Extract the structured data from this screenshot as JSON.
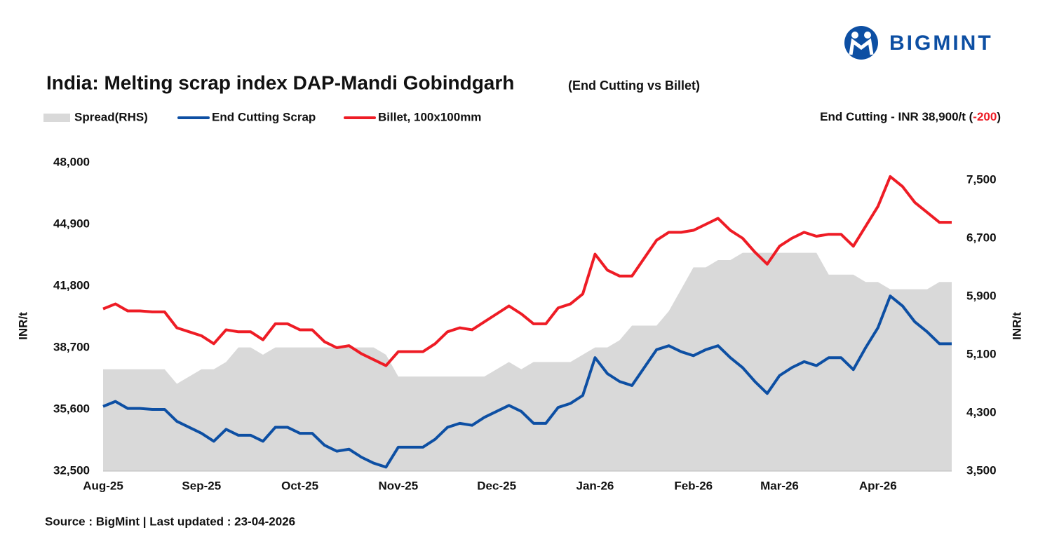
{
  "logo": "BIGMINT",
  "chart_data": {
    "type": "line",
    "title": "India: Melting scrap index DAP-Mandi Gobindgarh",
    "subtitle": "(End Cutting vs Billet)",
    "annotation": {
      "text": "End Cutting - INR 38,900/t (",
      "change": "-200",
      "close": ")"
    },
    "source": "Source : BigMint | Last updated : 23-04-2026",
    "ylabel": "INR/t",
    "y2label": "INR/t",
    "categories": [
      "Aug-25",
      null,
      null,
      null,
      null,
      null,
      null,
      null,
      "Sep-25",
      null,
      null,
      null,
      null,
      null,
      null,
      null,
      "Oct-25",
      null,
      null,
      null,
      null,
      null,
      null,
      null,
      "Nov-25",
      null,
      null,
      null,
      null,
      null,
      null,
      null,
      "Dec-25",
      null,
      null,
      null,
      null,
      null,
      null,
      null,
      "Jan-26",
      null,
      null,
      null,
      null,
      null,
      null,
      null,
      "Feb-26",
      null,
      null,
      null,
      null,
      null,
      null,
      "Mar-26",
      null,
      null,
      null,
      null,
      null,
      null,
      null,
      "Apr-26",
      null,
      null,
      null,
      null,
      null,
      null
    ],
    "series": [
      {
        "name": "Spread(RHS)",
        "type": "area",
        "axis": "y2",
        "color": "#d9d9d9",
        "values": [
          4900,
          4900,
          4900,
          4900,
          4900,
          4900,
          4700,
          4800,
          4900,
          4900,
          5000,
          5200,
          5200,
          5100,
          5200,
          5200,
          5200,
          5200,
          5200,
          5200,
          5200,
          5200,
          5200,
          5100,
          4800,
          4800,
          4800,
          4800,
          4800,
          4800,
          4800,
          4800,
          4900,
          5000,
          4900,
          5000,
          5000,
          5000,
          5000,
          5100,
          5200,
          5200,
          5300,
          5500,
          5500,
          5500,
          5700,
          6000,
          6300,
          6300,
          6400,
          6400,
          6500,
          6500,
          6500,
          6500,
          6500,
          6500,
          6500,
          6200,
          6200,
          6200,
          6100,
          6100,
          6000,
          6000,
          6000,
          6000,
          6100,
          6100
        ]
      },
      {
        "name": "End Cutting Scrap",
        "type": "line",
        "color": "#0d4fa3",
        "values": [
          35750,
          36000,
          35650,
          35650,
          35600,
          35600,
          35000,
          34700,
          34400,
          34000,
          34600,
          34300,
          34300,
          34000,
          34700,
          34700,
          34400,
          34400,
          33800,
          33500,
          33600,
          33200,
          32900,
          32700,
          33700,
          33700,
          33700,
          34100,
          34700,
          34900,
          34800,
          35200,
          35500,
          35800,
          35500,
          34900,
          34900,
          35700,
          35900,
          36300,
          38200,
          37400,
          37000,
          36800,
          37700,
          38600,
          38800,
          38500,
          38300,
          38600,
          38800,
          38200,
          37700,
          37000,
          36400,
          37300,
          37700,
          38000,
          37800,
          38200,
          38200,
          37600,
          38700,
          39700,
          41300,
          40800,
          40000,
          39500,
          38900,
          38900
        ]
      },
      {
        "name": "Billet, 100x100mm",
        "type": "line",
        "color": "#ee1c25",
        "values": [
          40650,
          40900,
          40550,
          40550,
          40500,
          40500,
          39700,
          39500,
          39300,
          38900,
          39600,
          39500,
          39500,
          39100,
          39900,
          39900,
          39600,
          39600,
          39000,
          38700,
          38800,
          38400,
          38100,
          37800,
          38500,
          38500,
          38500,
          38900,
          39500,
          39700,
          39600,
          40000,
          40400,
          40800,
          40400,
          39900,
          39900,
          40700,
          40900,
          41400,
          43400,
          42600,
          42300,
          42300,
          43200,
          44100,
          44500,
          44500,
          44600,
          44900,
          45200,
          44600,
          44200,
          43500,
          42900,
          43800,
          44200,
          44500,
          44300,
          44400,
          44400,
          43800,
          44800,
          45800,
          47300,
          46800,
          46000,
          45500,
          45000,
          45000
        ]
      }
    ],
    "ylim": [
      32500,
      48000
    ],
    "yticks": [
      {
        "value": 32500,
        "label": "32,500"
      },
      {
        "value": 35600,
        "label": "35,600"
      },
      {
        "value": 38700,
        "label": "38,700"
      },
      {
        "value": 41800,
        "label": "41,800"
      },
      {
        "value": 44900,
        "label": "44,900"
      },
      {
        "value": 48000,
        "label": "48,000"
      }
    ],
    "y2lim": [
      3500,
      7740
    ],
    "y2ticks": [
      {
        "value": 3500,
        "label": "3,500"
      },
      {
        "value": 4300,
        "label": "4,300"
      },
      {
        "value": 5100,
        "label": "5,100"
      },
      {
        "value": 5900,
        "label": "5,900"
      },
      {
        "value": 6700,
        "label": "6,700"
      },
      {
        "value": 7500,
        "label": "7,500"
      }
    ]
  }
}
